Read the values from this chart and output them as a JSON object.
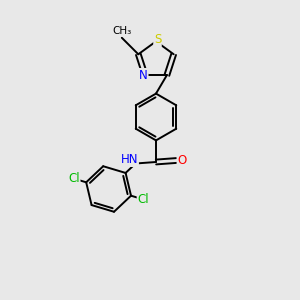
{
  "background_color": "#e8e8e8",
  "bond_color": "#000000",
  "atom_colors": {
    "S": "#cccc00",
    "N": "#0000ff",
    "O": "#ff0000",
    "Cl": "#00bb00",
    "C": "#000000",
    "H": "#000000"
  },
  "figsize": [
    3.0,
    3.0
  ],
  "dpi": 100
}
